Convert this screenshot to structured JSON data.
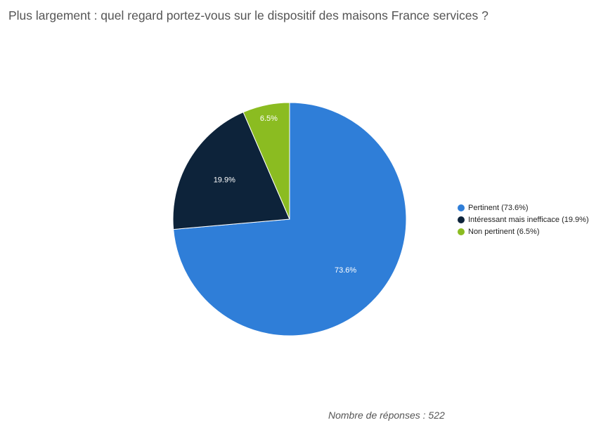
{
  "title": "Plus largement : quel regard portez-vous sur le dispositif des maisons France services ?",
  "footer": "Nombre de réponses : 522",
  "chart_data": {
    "type": "pie",
    "title": "Plus largement : quel regard portez-vous sur le dispositif des maisons France services ?",
    "categories": [
      "Pertinent",
      "Intéressant mais inefficace",
      "Non pertinent"
    ],
    "values": [
      73.6,
      19.9,
      6.5
    ],
    "data_labels": [
      "73.6%",
      "19.9%",
      "6.5%"
    ],
    "legend_labels": [
      "Pertinent (73.6%)",
      "Intéressant mais inefficace (19.9%)",
      "Non pertinent (6.5%)"
    ],
    "colors": [
      "#2f7ed8",
      "#0d233a",
      "#8bbc21"
    ],
    "legend_position": "right"
  }
}
